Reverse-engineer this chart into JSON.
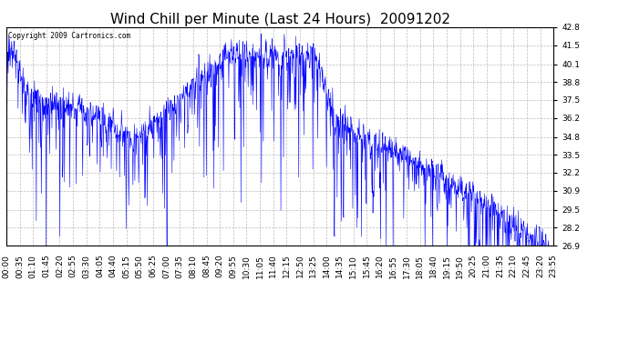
{
  "title": "Wind Chill per Minute (Last 24 Hours)  20091202",
  "copyright_text": "Copyright 2009 Cartronics.com",
  "line_color": "#0000FF",
  "bg_color": "#FFFFFF",
  "grid_color": "#AAAAAA",
  "ylim": [
    26.9,
    42.8
  ],
  "yticks": [
    26.9,
    28.2,
    29.5,
    30.9,
    32.2,
    33.5,
    34.8,
    36.2,
    37.5,
    38.8,
    40.1,
    41.5,
    42.8
  ],
  "title_fontsize": 11,
  "tick_fontsize": 6.5,
  "xtick_labels": [
    "00:00",
    "00:35",
    "01:10",
    "01:45",
    "02:20",
    "02:55",
    "03:30",
    "04:05",
    "04:40",
    "05:15",
    "05:50",
    "06:25",
    "07:00",
    "07:35",
    "08:10",
    "08:45",
    "09:20",
    "09:55",
    "10:30",
    "11:05",
    "11:40",
    "12:15",
    "12:50",
    "13:25",
    "14:00",
    "14:35",
    "15:10",
    "15:45",
    "16:20",
    "16:55",
    "17:30",
    "18:05",
    "18:40",
    "19:15",
    "19:50",
    "20:25",
    "21:00",
    "21:35",
    "22:10",
    "22:45",
    "23:20",
    "23:55"
  ]
}
